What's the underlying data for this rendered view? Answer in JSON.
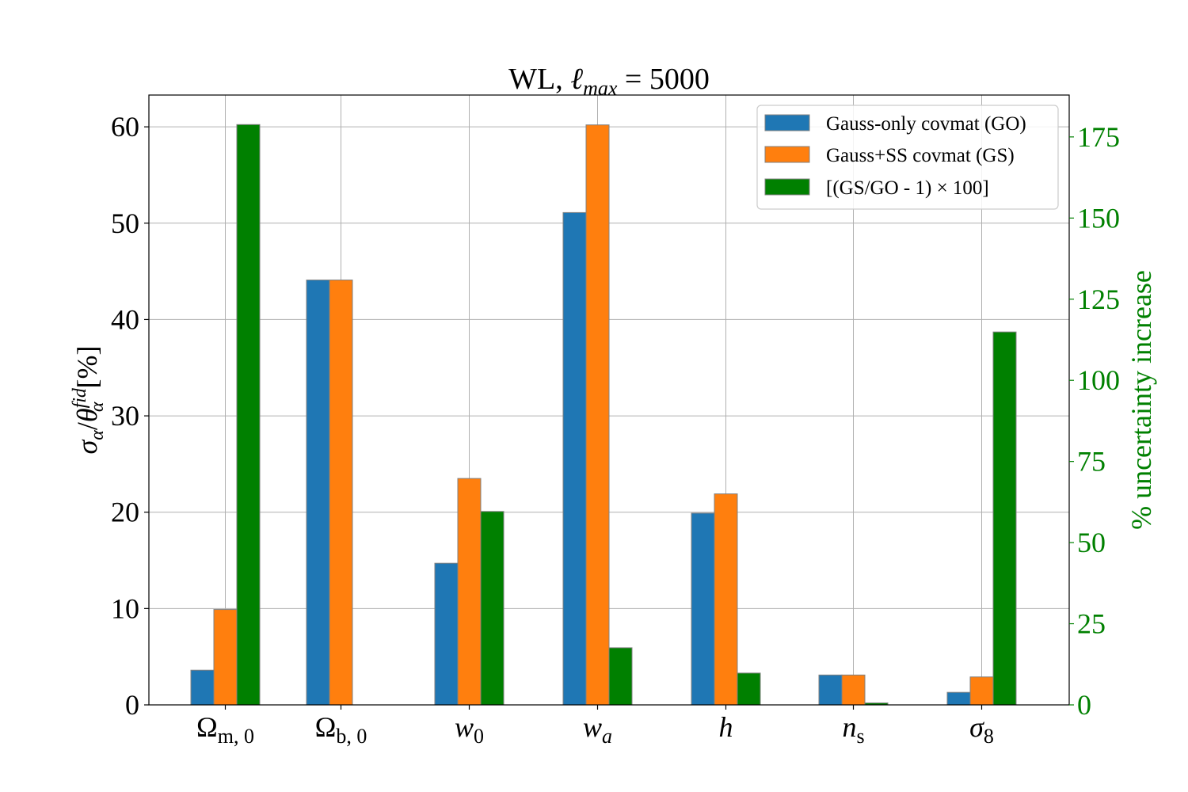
{
  "chart_data": {
    "type": "bar",
    "title": "WL, ℓ max = 5000",
    "title_parts": {
      "prefix": "WL, ",
      "ell": "ℓ",
      "sub": "max",
      "suffix": " = 5000"
    },
    "ylabel_left": "σα/θαfid [%]",
    "ylabel_left_parts": {
      "sigma": "σ",
      "sigma_sub": "α",
      "slash": "/",
      "theta": "θ",
      "theta_sup": "fid",
      "theta_sub": "α",
      "unit": " [%]"
    },
    "ylabel_right": "% uncertainty increase",
    "ylim_left": [
      0,
      63.3
    ],
    "ylim_right": [
      0,
      187.9
    ],
    "yticks_left": [
      0,
      10,
      20,
      30,
      40,
      50,
      60
    ],
    "yticks_right": [
      0,
      25,
      50,
      75,
      100,
      125,
      150,
      175
    ],
    "grid": true,
    "legend_position": "top-right",
    "categories": [
      {
        "base": "Ω",
        "sub": "m, 0",
        "italic": false
      },
      {
        "base": "Ω",
        "sub": "b, 0",
        "italic": false
      },
      {
        "base": "w",
        "sub": "0",
        "italic": true
      },
      {
        "base": "w",
        "sub": "a",
        "italic": true,
        "sub_italic": true
      },
      {
        "base": "h",
        "sub": "",
        "italic": true
      },
      {
        "base": "n",
        "sub": "s",
        "italic": true
      },
      {
        "base": "σ",
        "sub": "8",
        "italic": true
      }
    ],
    "series": [
      {
        "name": "Gauss-only covmat (GO)",
        "color": "#1f77b4",
        "axis": "left",
        "values": [
          3.6,
          44.1,
          14.7,
          51.1,
          19.9,
          3.1,
          1.3
        ]
      },
      {
        "name": "Gauss+SS covmat (GS)",
        "color": "#ff7f0e",
        "axis": "left",
        "values": [
          9.9,
          44.1,
          23.5,
          60.2,
          21.9,
          3.1,
          2.9
        ]
      },
      {
        "name": "[(GS/GO - 1) × 100]",
        "color": "#008000",
        "axis": "right",
        "values": [
          178.8,
          0.0,
          59.6,
          17.6,
          9.8,
          0.6,
          114.9
        ]
      }
    ]
  }
}
